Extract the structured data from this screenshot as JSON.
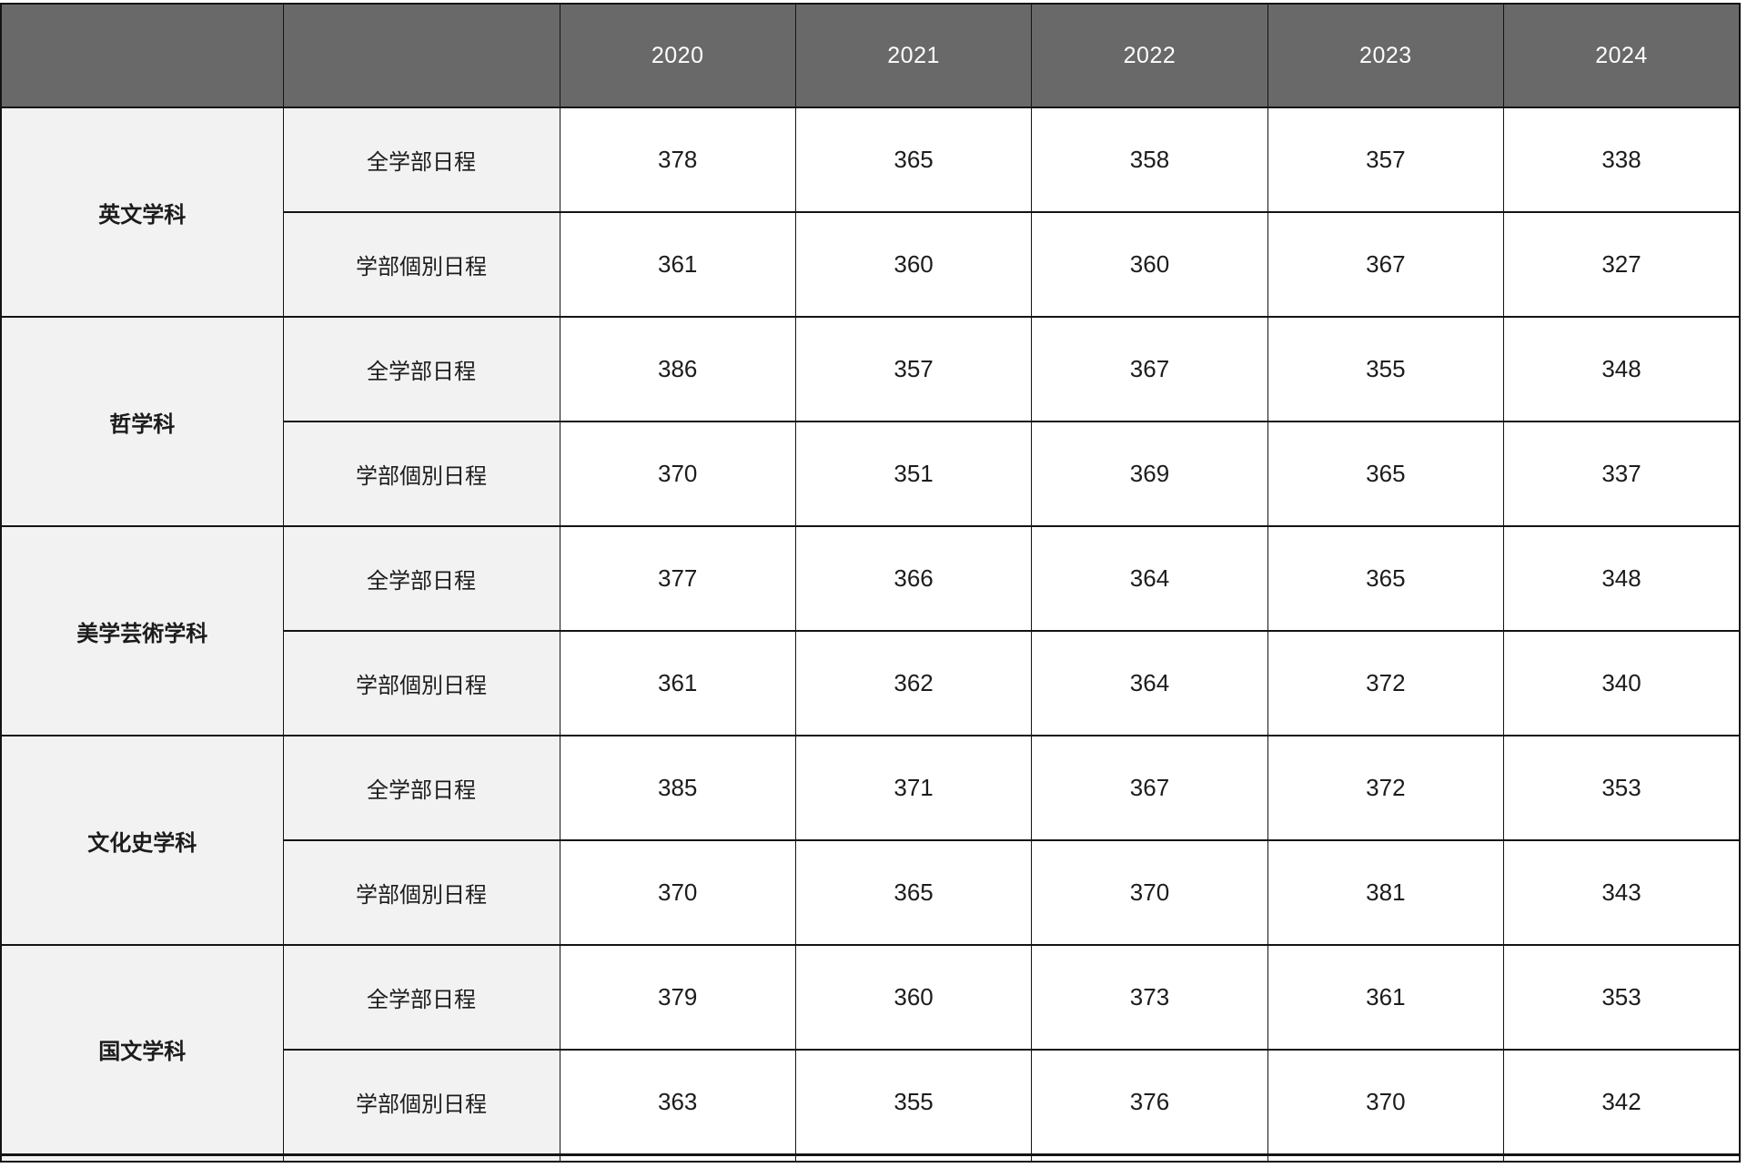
{
  "chart_data": {
    "type": "table",
    "columns": [
      "",
      "",
      "2020",
      "2021",
      "2022",
      "2023",
      "2024"
    ],
    "rows": [
      [
        "英文学科",
        "全学部日程",
        378,
        365,
        358,
        357,
        338
      ],
      [
        "英文学科",
        "学部個別日程",
        361,
        360,
        360,
        367,
        327
      ],
      [
        "哲学科",
        "全学部日程",
        386,
        357,
        367,
        355,
        348
      ],
      [
        "哲学科",
        "学部個別日程",
        370,
        351,
        369,
        365,
        337
      ],
      [
        "美学芸術学科",
        "全学部日程",
        377,
        366,
        364,
        365,
        348
      ],
      [
        "美学芸術学科",
        "学部個別日程",
        361,
        362,
        364,
        372,
        340
      ],
      [
        "文化史学科",
        "全学部日程",
        385,
        371,
        367,
        372,
        353
      ],
      [
        "文化史学科",
        "学部個別日程",
        370,
        365,
        370,
        381,
        343
      ],
      [
        "国文学科",
        "全学部日程",
        379,
        360,
        373,
        361,
        353
      ],
      [
        "国文学科",
        "学部個別日程",
        363,
        355,
        376,
        370,
        342
      ]
    ],
    "layout": {
      "grid": true,
      "header_position": "top",
      "row_group_column": 0,
      "sub_label_column": 1
    }
  },
  "colors": {
    "header_bg": "#696969",
    "header_text": "#ffffff",
    "label_bg": "#f2f2f2",
    "value_bg": "#ffffff",
    "border": "#141414",
    "text": "#1c1c1c"
  }
}
